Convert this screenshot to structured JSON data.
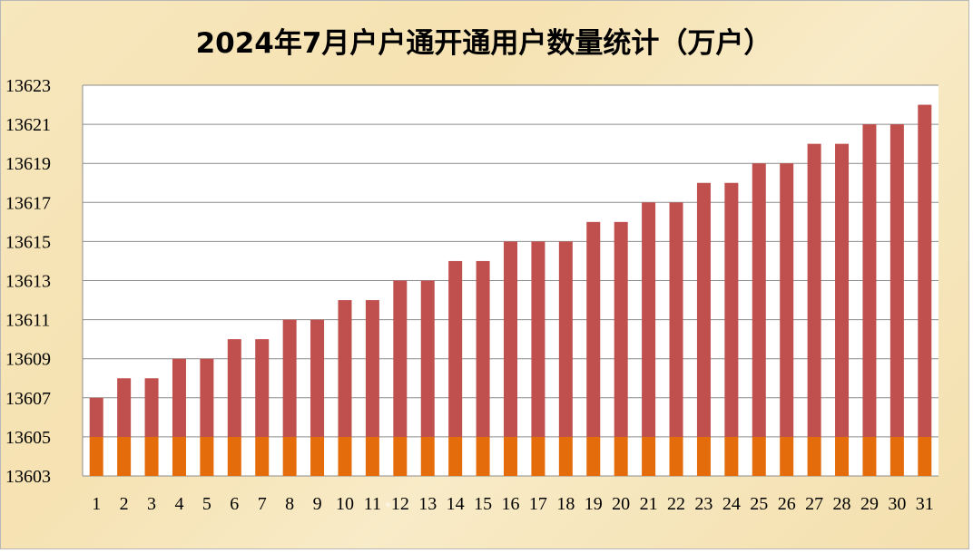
{
  "chart_data": {
    "type": "bar",
    "title": "2024年7月户户通开通用户数量统计（万户）",
    "xlabel": "",
    "ylabel": "",
    "categories": [
      "1",
      "2",
      "3",
      "4",
      "5",
      "6",
      "7",
      "8",
      "9",
      "10",
      "11",
      "12",
      "13",
      "14",
      "15",
      "16",
      "17",
      "18",
      "19",
      "20",
      "21",
      "22",
      "23",
      "24",
      "25",
      "26",
      "27",
      "28",
      "29",
      "30",
      "31"
    ],
    "values": [
      13607,
      13608,
      13608,
      13609,
      13609,
      13610,
      13610,
      13611,
      13611,
      13612,
      13612,
      13613,
      13613,
      13614,
      13614,
      13615,
      13615,
      13615,
      13616,
      13616,
      13617,
      13617,
      13618,
      13618,
      13619,
      13619,
      13620,
      13620,
      13621,
      13621,
      13622
    ],
    "ylim": [
      13603,
      13623
    ],
    "y_ticks": [
      13603,
      13605,
      13607,
      13609,
      13611,
      13613,
      13615,
      13617,
      13619,
      13621,
      13623
    ],
    "highlight_band_top": 13605,
    "grid": true,
    "legend": "none",
    "colors": {
      "bar": "#c0504d",
      "bar_base": "#e46c0a",
      "plot_bg": "#ffffff",
      "grid": "#8c8c8c"
    }
  }
}
